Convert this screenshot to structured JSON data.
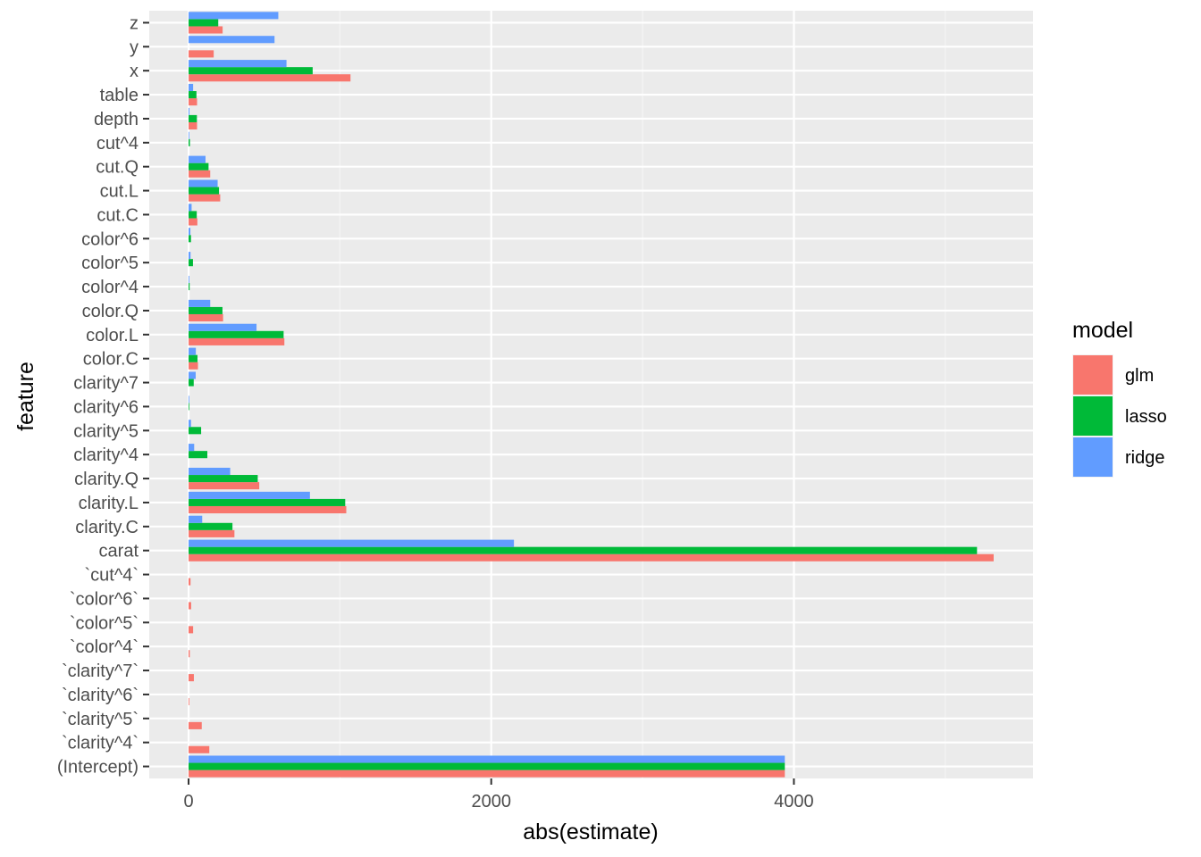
{
  "chart_data": {
    "type": "bar",
    "orientation": "horizontal",
    "xlabel": "abs(estimate)",
    "ylabel": "feature",
    "xlim": [
      -260,
      5580
    ],
    "x_ticks": [
      0,
      2000,
      4000
    ],
    "x_tick_labels": [
      "0",
      "2000",
      "4000"
    ],
    "grid": true,
    "legend_position": "right",
    "legend": {
      "title": "model",
      "entries": [
        {
          "name": "glm",
          "color": "#F8766D"
        },
        {
          "name": "lasso",
          "color": "#00BA38"
        },
        {
          "name": "ridge",
          "color": "#619CFF"
        }
      ]
    },
    "categories": [
      "(Intercept)",
      "`clarity^4`",
      "`clarity^5`",
      "`clarity^6`",
      "`clarity^7`",
      "`color^4`",
      "`color^5`",
      "`color^6`",
      "`cut^4`",
      "carat",
      "clarity.C",
      "clarity.L",
      "clarity.Q",
      "clarity^4",
      "clarity^5",
      "clarity^6",
      "clarity^7",
      "color.C",
      "color.L",
      "color.Q",
      "color^4",
      "color^5",
      "color^6",
      "cut.C",
      "cut.L",
      "cut.Q",
      "cut^4",
      "depth",
      "table",
      "x",
      "y",
      "z"
    ],
    "series": [
      {
        "name": "glm",
        "color": "#F8766D",
        "values": [
          3940,
          137,
          87,
          2,
          35,
          8,
          30,
          17,
          13,
          5320,
          303,
          1042,
          467,
          null,
          null,
          null,
          null,
          62,
          633,
          228,
          null,
          null,
          null,
          58,
          209,
          143,
          null,
          56,
          56,
          1070,
          166,
          225
        ]
      },
      {
        "name": "lasso",
        "color": "#00BA38",
        "values": [
          3940,
          null,
          null,
          null,
          null,
          null,
          null,
          null,
          null,
          5210,
          290,
          1035,
          457,
          124,
          83,
          2,
          34,
          59,
          628,
          224,
          7,
          29,
          16,
          54,
          201,
          132,
          9,
          55,
          52,
          820,
          null,
          196
        ]
      },
      {
        "name": "ridge",
        "color": "#619CFF",
        "values": [
          3940,
          null,
          null,
          null,
          null,
          null,
          null,
          null,
          null,
          2150,
          90,
          802,
          275,
          37,
          16,
          3,
          47,
          48,
          449,
          143,
          5,
          13,
          12,
          20,
          192,
          112,
          4,
          6,
          30,
          647,
          568,
          593
        ]
      }
    ]
  },
  "colors": {
    "panel_background": "#EBEBEB",
    "grid_major": "#FFFFFF",
    "grid_minor": "#F5F5F5",
    "tick_text": "#4D4D4D",
    "tick_mark": "#333333"
  }
}
